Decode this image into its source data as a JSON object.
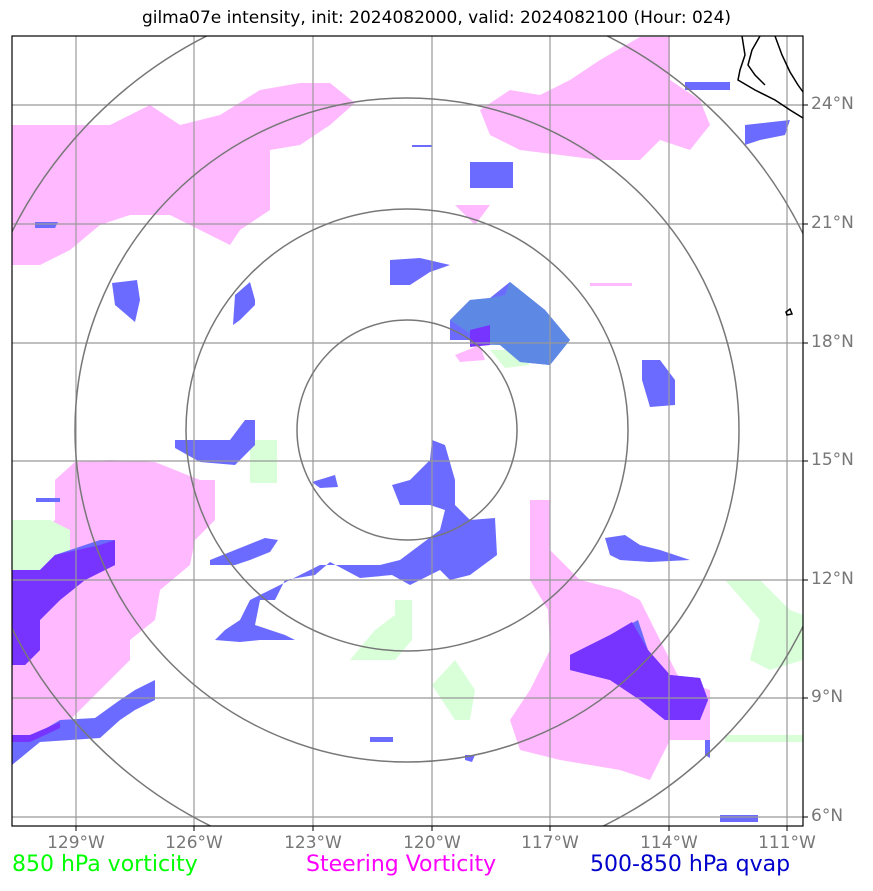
{
  "title": "gilma07e intensity, init: 2024082000, valid: 2024082100 (Hour: 024)",
  "lat_labels": [
    "24°N",
    "21°N",
    "18°N",
    "15°N",
    "12°N",
    "9°N",
    "6°N"
  ],
  "lon_labels": [
    "129°W",
    "126°W",
    "123°W",
    "120°W",
    "117°W",
    "114°W",
    "111°W"
  ],
  "legend": {
    "vort850": {
      "label": "850 hPa vorticity",
      "color": "#00ff00"
    },
    "steering": {
      "label": "Steering Vorticity",
      "color": "#ff00ff"
    },
    "qvap": {
      "label": "500-850 hPa qvap",
      "color": "#0000cc"
    }
  },
  "colors": {
    "steering_fill": "#ffb3ff",
    "vort850_fill": "#d9ffd9",
    "qvap_fill": "#6b6bff",
    "qvap_core": "#7733ff",
    "grid": "#999999",
    "range_rings": "#777777",
    "coast": "#000000"
  }
}
